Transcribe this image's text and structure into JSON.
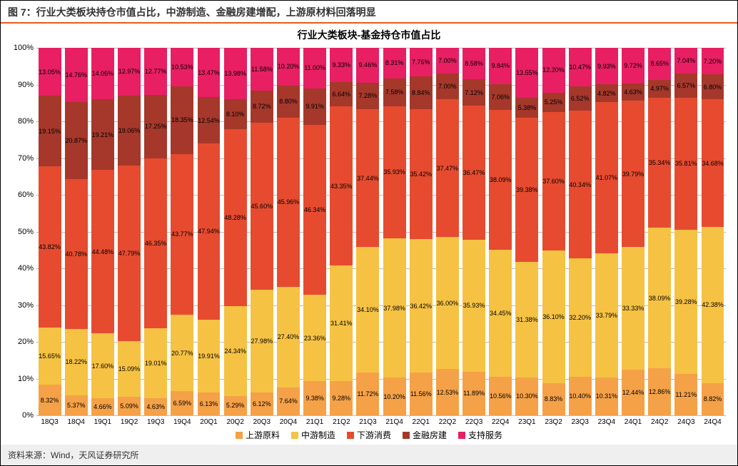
{
  "figure_label": "图 7：行业大类板块持仓市值占比，中游制造、金融房建增配，上游原材料回落明显",
  "source_label": "资料来源：Wind，天风证券研究所",
  "chart": {
    "type": "stacked-bar",
    "title": "行业大类板块-基金持仓市值占比",
    "title_fontsize": 14,
    "label_fontsize": 10,
    "value_label_fontsize": 9,
    "ylim": [
      0,
      100
    ],
    "ytick_step": 10,
    "y_suffix": "%",
    "background_color": "#ffffff",
    "grid_color": "#bbbbbb",
    "bar_width_pct": 86,
    "accent_color": "#e85a1a",
    "series": [
      {
        "key": "s0",
        "label": "上游原料",
        "color": "#f5a147",
        "text_color": "#000000"
      },
      {
        "key": "s1",
        "label": "中游制造",
        "color": "#f6c243",
        "text_color": "#000000"
      },
      {
        "key": "s2",
        "label": "下游消费",
        "color": "#e64b2f",
        "text_color": "#000000"
      },
      {
        "key": "s3",
        "label": "金融房建",
        "color": "#a5382b",
        "text_color": "#000000"
      },
      {
        "key": "s4",
        "label": "支持服务",
        "color": "#e81f63",
        "text_color": "#000000"
      }
    ],
    "categories": [
      "18Q3",
      "18Q4",
      "19Q1",
      "19Q2",
      "19Q3",
      "19Q4",
      "20Q1",
      "20Q2",
      "20Q3",
      "20Q4",
      "21Q1",
      "21Q2",
      "21Q3",
      "21Q4",
      "22Q1",
      "22Q2",
      "22Q3",
      "22Q4",
      "23Q1",
      "23Q2",
      "23Q3",
      "23Q4",
      "24Q1",
      "24Q2",
      "24Q3",
      "24Q4"
    ],
    "data": [
      [
        8.32,
        15.65,
        43.82,
        19.15,
        13.05
      ],
      [
        5.37,
        18.22,
        40.78,
        20.87,
        14.76
      ],
      [
        4.66,
        17.6,
        44.48,
        19.21,
        14.05
      ],
      [
        5.09,
        15.09,
        47.79,
        19.06,
        12.97
      ],
      [
        4.63,
        19.01,
        46.35,
        17.25,
        12.77
      ],
      [
        6.59,
        20.77,
        43.77,
        18.35,
        10.53
      ],
      [
        6.13,
        19.91,
        47.94,
        12.54,
        13.47
      ],
      [
        5.29,
        24.34,
        48.28,
        8.1,
        13.98
      ],
      [
        6.12,
        27.98,
        45.6,
        8.72,
        11.58
      ],
      [
        7.64,
        27.4,
        45.96,
        8.8,
        10.2
      ],
      [
        9.38,
        23.36,
        46.34,
        9.91,
        11.0
      ],
      [
        9.28,
        31.41,
        43.35,
        6.64,
        9.33
      ],
      [
        11.72,
        34.1,
        37.44,
        7.28,
        9.46
      ],
      [
        10.2,
        37.98,
        35.93,
        7.58,
        8.31
      ],
      [
        11.56,
        36.42,
        35.42,
        8.84,
        7.76
      ],
      [
        12.53,
        36.0,
        37.47,
        7.0,
        7.0
      ],
      [
        11.89,
        35.93,
        36.47,
        7.12,
        8.58
      ],
      [
        10.56,
        34.45,
        38.09,
        7.06,
        9.84
      ],
      [
        10.3,
        31.38,
        39.38,
        5.38,
        13.55
      ],
      [
        8.83,
        36.1,
        37.6,
        5.25,
        12.2
      ],
      [
        10.4,
        32.2,
        40.34,
        6.52,
        10.47
      ],
      [
        10.31,
        33.79,
        41.07,
        4.82,
        9.93
      ],
      [
        12.44,
        33.33,
        39.79,
        4.63,
        9.72
      ],
      [
        12.86,
        38.09,
        35.34,
        4.97,
        8.65
      ],
      [
        11.21,
        39.28,
        35.81,
        6.57,
        7.04
      ],
      [
        8.82,
        42.38,
        34.68,
        6.8,
        7.2
      ]
    ]
  }
}
